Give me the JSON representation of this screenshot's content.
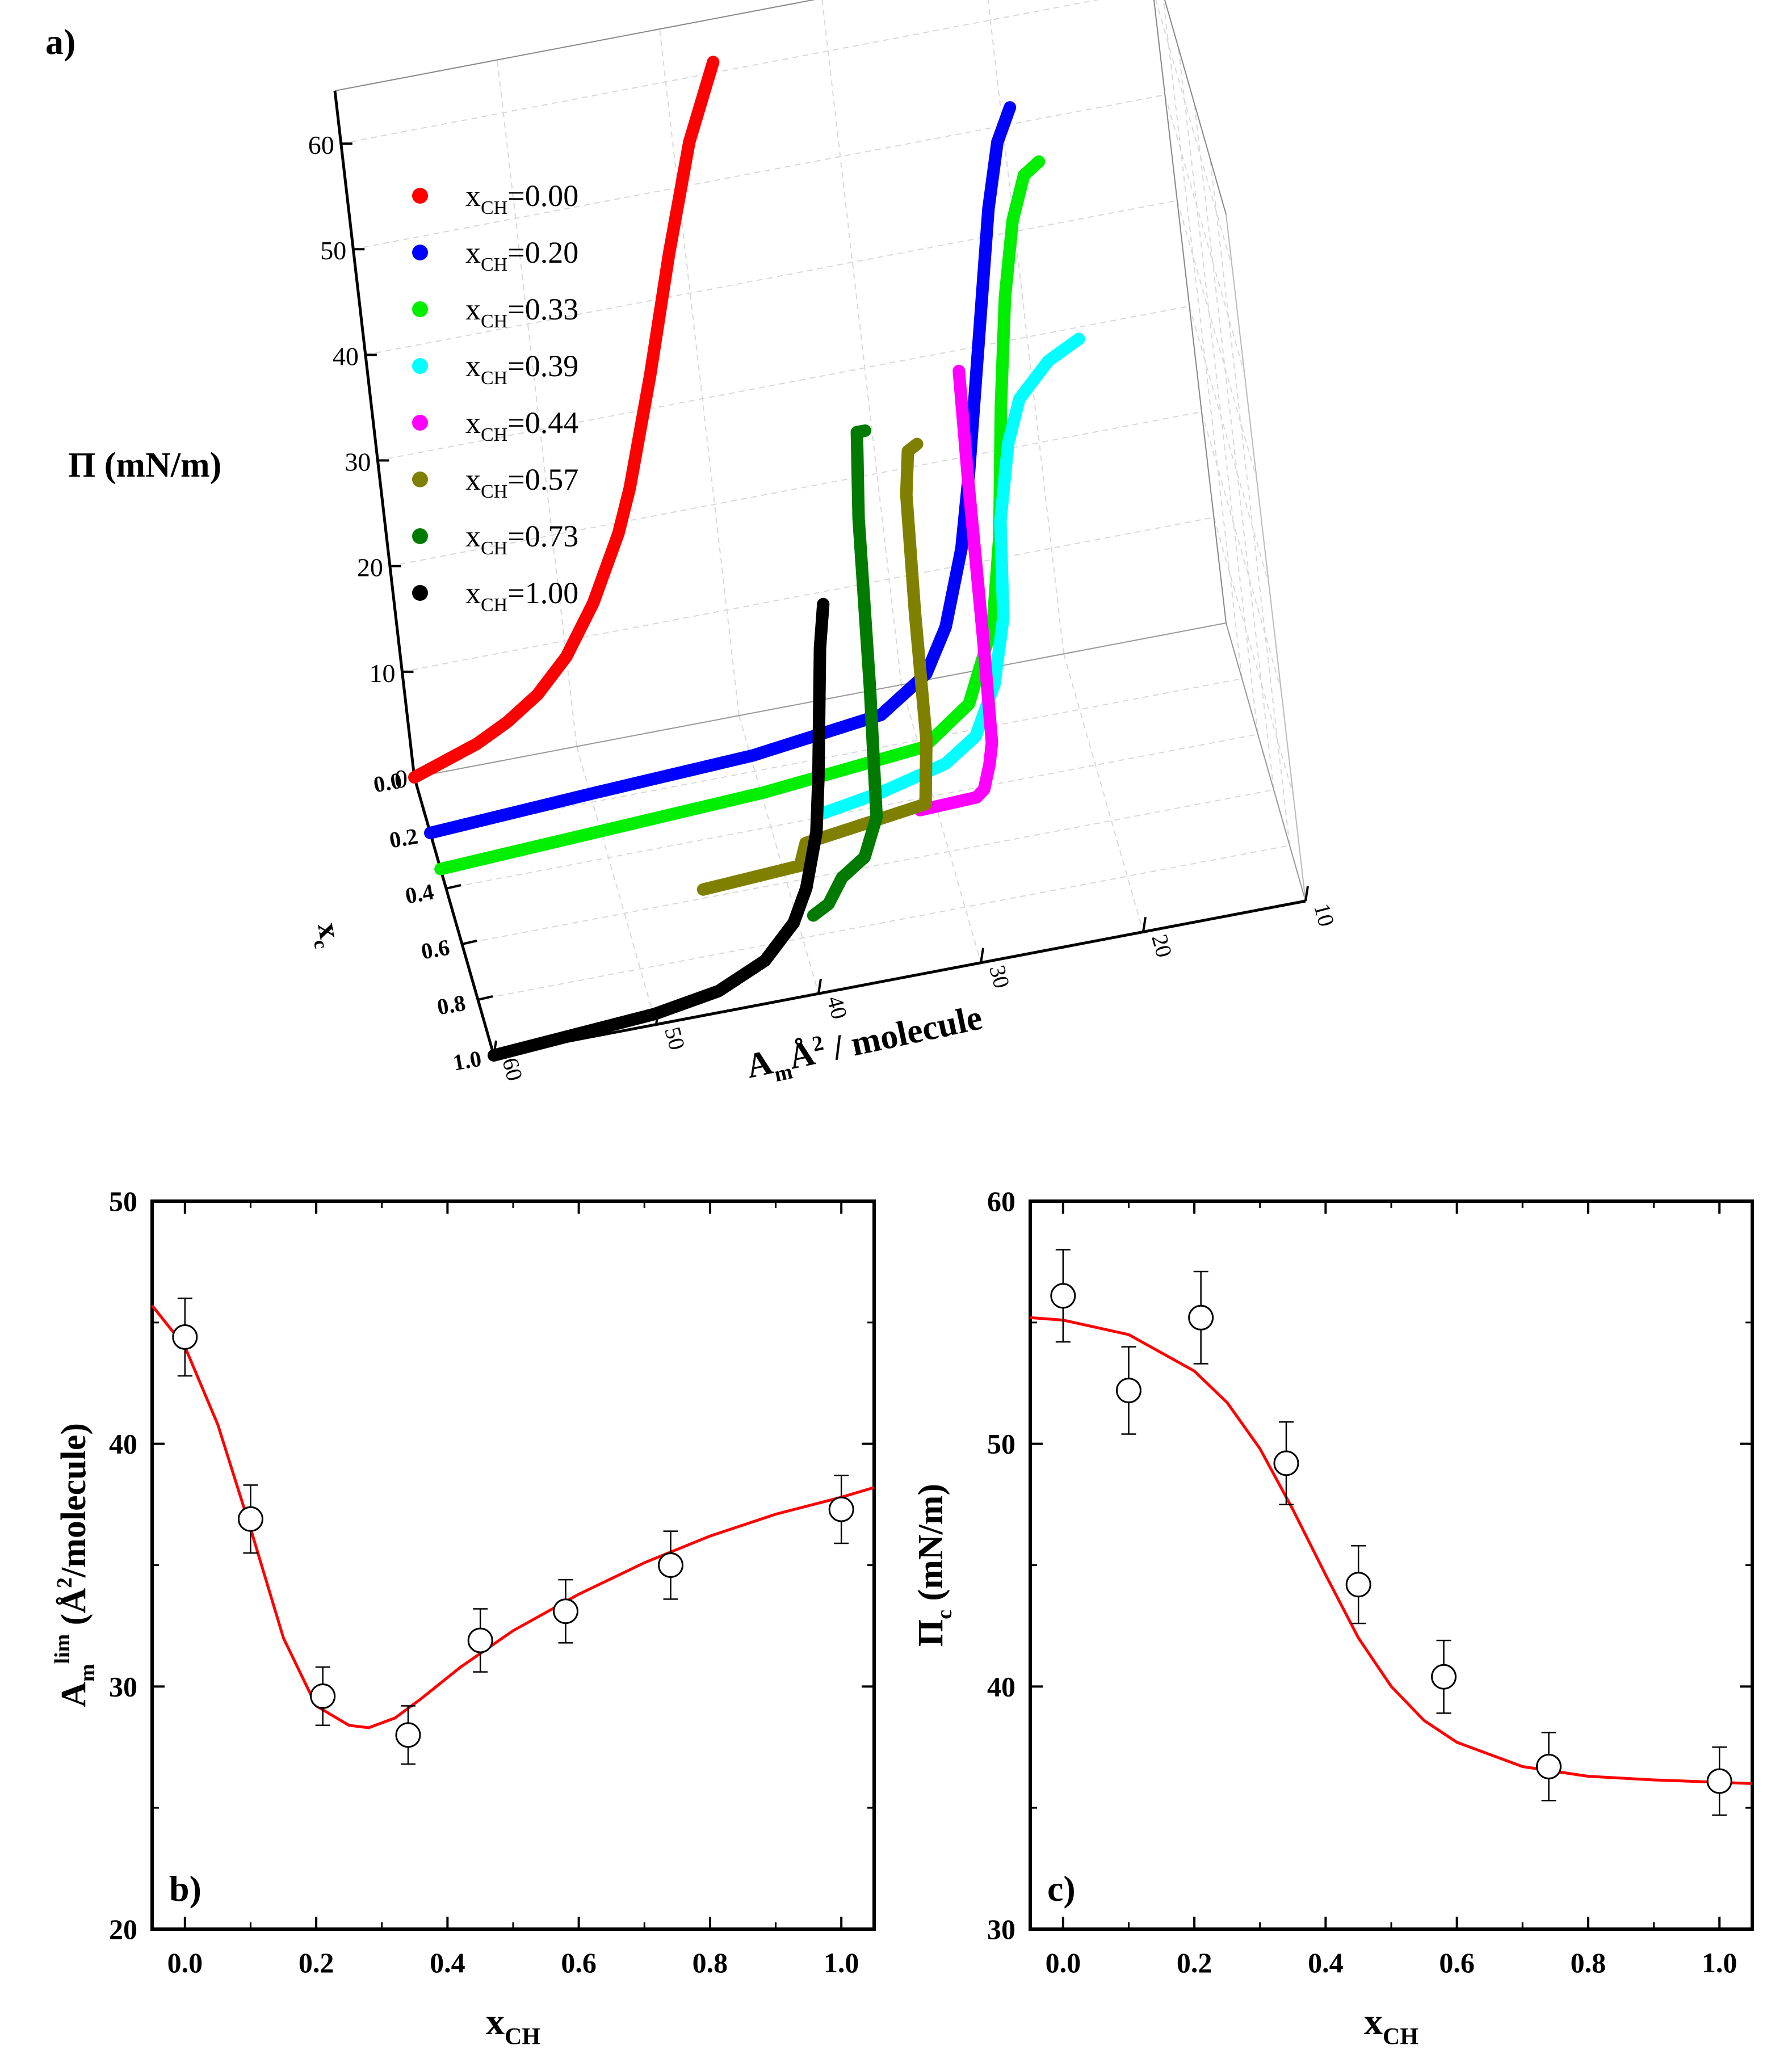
{
  "figure": {
    "panels": [
      "a)",
      "b)",
      "c)"
    ]
  },
  "chart_data": [
    {
      "id": "a",
      "type": "line",
      "subtype": "3d-isotherms",
      "panel_label": "a)",
      "zlabel": "Π (mN/m)",
      "xlabel": "A",
      "xlabel_sub": "m",
      "xlabel_rest": "Å",
      "xlabel_sup": "2",
      "xlabel_tail": " / molecule",
      "ylabel": "x",
      "ylabel_sub": "c",
      "x_ticks": [
        "60",
        "50",
        "40",
        "30",
        "20",
        "10"
      ],
      "y_ticks": [
        "0.0",
        "0.2",
        "0.4",
        "0.6",
        "0.8",
        "1.0"
      ],
      "z_ticks": [
        "0",
        "10",
        "20",
        "30",
        "40",
        "50",
        "60"
      ],
      "xlim": [
        60,
        10
      ],
      "ylim": [
        0,
        1
      ],
      "zlim": [
        0,
        65
      ],
      "legend_position": "top-left",
      "series": [
        {
          "name": "x_CH=0.00",
          "legend_main": "x",
          "legend_sub": "CH",
          "legend_tail": "=0.00",
          "color": "#ff0000",
          "xc": 0.0,
          "area": [
            60,
            58,
            56,
            54,
            52,
            50,
            48,
            46,
            45,
            44,
            43,
            42,
            41,
            40,
            39,
            38,
            37
          ],
          "pressure": [
            0.0,
            1.0,
            2.0,
            3.5,
            5.5,
            8.5,
            13.0,
            19.0,
            23.0,
            28.0,
            33.0,
            38.5,
            44.0,
            49.0,
            54.0,
            57.5,
            61.0
          ]
        },
        {
          "name": "x_CH=0.20",
          "legend_main": "x",
          "legend_sub": "CH",
          "legend_tail": "=0.20",
          "color": "#0000ff",
          "xc": 0.2,
          "area": [
            60,
            50,
            40,
            32,
            29,
            27.5,
            26,
            25,
            24,
            23,
            22,
            21,
            20
          ],
          "pressure": [
            0.0,
            0.8,
            1.5,
            3.0,
            6.0,
            10.0,
            17.0,
            24.0,
            32.0,
            40.0,
            48.0,
            54.0,
            57.0
          ]
        },
        {
          "name": "x_CH=0.33",
          "legend_main": "x",
          "legend_sub": "CH",
          "legend_tail": "=0.33",
          "color": "#00ee00",
          "xc": 0.33,
          "area": [
            60,
            50,
            40,
            30,
            27,
            25,
            24,
            23,
            22,
            21,
            20,
            19
          ],
          "pressure": [
            0.0,
            0.7,
            1.4,
            2.8,
            6.0,
            13.0,
            21.0,
            33.0,
            43.0,
            50.0,
            54.0,
            55.0
          ]
        },
        {
          "name": "x_CH=0.39",
          "legend_main": "x",
          "legend_sub": "CH",
          "legend_tail": "=0.39",
          "color": "#00ffff",
          "xc": 0.39,
          "area": [
            37,
            33,
            29,
            27,
            25.5,
            24.5,
            24,
            23,
            22,
            20,
            18
          ],
          "pressure": [
            0.0,
            1.0,
            2.5,
            4.5,
            9.0,
            15.0,
            24.0,
            31.0,
            35.0,
            38.0,
            39.5
          ]
        },
        {
          "name": "x_CH=0.44",
          "legend_main": "x",
          "legend_sub": "CH",
          "legend_tail": "=0.44",
          "color": "#ff00ff",
          "xc": 0.44,
          "area": [
            31,
            27.5,
            27,
            26.5,
            26.2,
            26.0,
            25.8,
            25.6
          ],
          "pressure": [
            0.0,
            0.2,
            0.8,
            3.0,
            5.0,
            15.0,
            30.0,
            40.0
          ]
        },
        {
          "name": "x_CH=0.57",
          "legend_main": "x",
          "legend_sub": "CH",
          "legend_tail": "=0.57",
          "color": "#808000",
          "xc": 0.57,
          "area": [
            45,
            39,
            38.5,
            31,
            30.5,
            30.3,
            30.0,
            29.6,
            29
          ],
          "pressure": [
            0.0,
            0.5,
            2.5,
            4.0,
            10.0,
            22.0,
            33.0,
            37.0,
            37.5
          ]
        },
        {
          "name": "x_CH=0.73",
          "legend_main": "x",
          "legend_sub": "CH",
          "legend_tail": "=0.73",
          "color": "#007a00",
          "xc": 0.73,
          "area": [
            39,
            38,
            37,
            35.5,
            34.5,
            34.0,
            33.5,
            33.0,
            32.5
          ],
          "pressure": [
            0.0,
            0.8,
            3.0,
            4.5,
            8.0,
            20.0,
            36.0,
            44.0,
            44.0
          ]
        },
        {
          "name": "x_CH=1.00",
          "legend_main": "x",
          "legend_sub": "CH",
          "legend_tail": "=1.00",
          "color": "#000000",
          "xc": 1.0,
          "area": [
            60,
            55,
            50,
            46,
            43,
            41,
            40,
            39,
            38.5,
            38,
            37.5,
            37
          ],
          "pressure": [
            0.0,
            0.5,
            1.0,
            2.0,
            4.0,
            7.0,
            10.0,
            15.0,
            20.0,
            26.0,
            32.0,
            36.0
          ]
        }
      ]
    },
    {
      "id": "b",
      "type": "scatter",
      "panel_label": "b)",
      "xlabel": "x",
      "xlabel_sub": "CH",
      "ylabel": "(Å",
      "ylabel_main": "A",
      "ylabel_sub": "m",
      "ylabel_sup": "lim",
      "ylabel_paren_open": "(Å",
      "ylabel_sup2": "2",
      "ylabel_tail": "/molecule)",
      "xlim": [
        -0.05,
        1.05
      ],
      "ylim": [
        20,
        50
      ],
      "x_ticks": [
        "0.0",
        "0.2",
        "0.4",
        "0.6",
        "0.8",
        "1.0"
      ],
      "y_ticks": [
        "20",
        "30",
        "40",
        "50"
      ],
      "points": {
        "x": [
          0.0,
          0.1,
          0.21,
          0.34,
          0.45,
          0.58,
          0.74,
          1.0
        ],
        "y": [
          44.4,
          36.9,
          29.6,
          28.0,
          31.9,
          33.1,
          35.0,
          37.3
        ],
        "err": [
          1.6,
          1.4,
          1.2,
          1.2,
          1.3,
          1.3,
          1.4,
          1.4
        ]
      },
      "fit": {
        "color": "#ff0000",
        "x": [
          -0.05,
          0.0,
          0.05,
          0.1,
          0.15,
          0.2,
          0.25,
          0.28,
          0.32,
          0.36,
          0.42,
          0.5,
          0.6,
          0.7,
          0.8,
          0.9,
          1.0,
          1.05
        ],
        "y": [
          45.7,
          44.0,
          40.8,
          36.5,
          32.0,
          29.2,
          28.4,
          28.3,
          28.7,
          29.5,
          30.8,
          32.3,
          33.8,
          35.1,
          36.2,
          37.1,
          37.8,
          38.2
        ]
      }
    },
    {
      "id": "c",
      "type": "scatter",
      "panel_label": "c)",
      "xlabel": "x",
      "xlabel_sub": "CH",
      "ylabel_main": "Π",
      "ylabel_sub": "c",
      "ylabel_tail": " (mN/m)",
      "xlim": [
        -0.05,
        1.05
      ],
      "ylim": [
        30,
        60
      ],
      "x_ticks": [
        "0.0",
        "0.2",
        "0.4",
        "0.6",
        "0.8",
        "1.0"
      ],
      "y_ticks": [
        "30",
        "40",
        "50",
        "60"
      ],
      "points": {
        "x": [
          0.0,
          0.1,
          0.21,
          0.34,
          0.45,
          0.58,
          0.74,
          1.0
        ],
        "y": [
          56.1,
          52.2,
          55.2,
          49.2,
          44.2,
          40.4,
          36.7,
          36.1
        ],
        "err": [
          1.9,
          1.8,
          1.9,
          1.7,
          1.6,
          1.5,
          1.4,
          1.4
        ]
      },
      "fit": {
        "color": "#ff0000",
        "x": [
          -0.05,
          0.0,
          0.1,
          0.2,
          0.25,
          0.3,
          0.35,
          0.4,
          0.45,
          0.5,
          0.55,
          0.6,
          0.7,
          0.8,
          0.9,
          1.0,
          1.05
        ],
        "y": [
          55.2,
          55.1,
          54.5,
          53.0,
          51.7,
          49.8,
          47.3,
          44.6,
          42.0,
          40.0,
          38.6,
          37.7,
          36.7,
          36.3,
          36.15,
          36.05,
          36.0
        ]
      }
    }
  ]
}
